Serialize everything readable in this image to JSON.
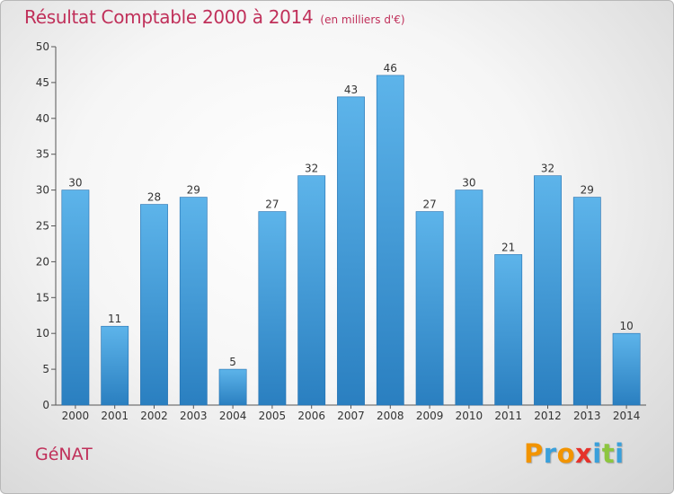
{
  "header": {
    "title": "Résultat Comptable 2000 à 2014",
    "subtitle": "(en milliers d'€)"
  },
  "footer": {
    "location": "GéNAT",
    "brand": "Proxiti",
    "brand_letters": [
      "P",
      "r",
      "o",
      "x",
      "i",
      "t",
      "i"
    ],
    "brand_colors": [
      "#f29400",
      "#3aa0db",
      "#f29400",
      "#e6322b",
      "#3aa0db",
      "#8dc63f",
      "#3aa0db"
    ]
  },
  "colors": {
    "bar_light": "#5db4ea",
    "bar_dark": "#2a7fc0",
    "text": "#333333",
    "accent": "#c0305a"
  },
  "chart_data": {
    "type": "bar",
    "title": "Résultat Comptable 2000 à 2014",
    "subtitle": "(en milliers d'€)",
    "xlabel": "",
    "ylabel": "",
    "categories": [
      "2000",
      "2001",
      "2002",
      "2003",
      "2004",
      "2005",
      "2006",
      "2007",
      "2008",
      "2009",
      "2010",
      "2011",
      "2012",
      "2013",
      "2014"
    ],
    "values": [
      30,
      11,
      28,
      29,
      5,
      27,
      32,
      43,
      46,
      27,
      30,
      21,
      32,
      29,
      10
    ],
    "ylim": [
      0,
      50
    ],
    "yticks": [
      0,
      5,
      10,
      15,
      20,
      25,
      30,
      35,
      40,
      45,
      50
    ],
    "grid": false,
    "data_labels": true
  }
}
